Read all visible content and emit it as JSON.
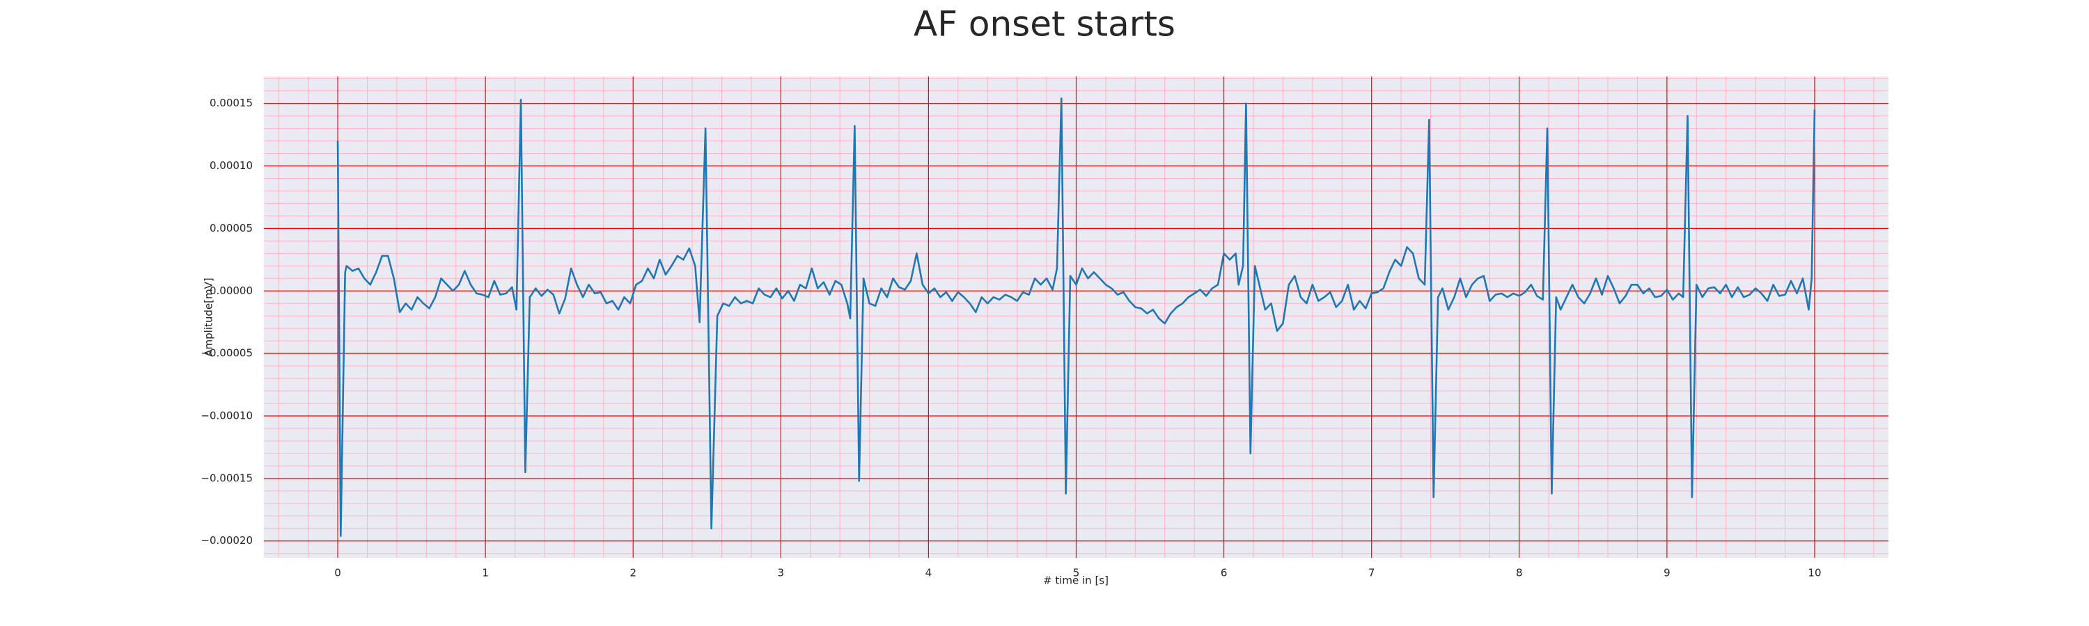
{
  "chart_data": {
    "type": "line",
    "title": "AF onset starts",
    "xlabel": "# time in [s]",
    "ylabel": "Amplitude[mV]",
    "color": "#1f77b4",
    "grid": true,
    "grid_color": "#ff0000",
    "minor_grid_color": "#ffb3c6",
    "minor_divisions": 5,
    "background": "#eaeaf2",
    "xlim": [
      -0.5,
      10.5
    ],
    "xticks": [
      0,
      1,
      2,
      3,
      4,
      5,
      6,
      7,
      8,
      9,
      10
    ],
    "ylim": [
      -0.0002135,
      0.0001715
    ],
    "yticks": [
      0.00015,
      {
        "value": 0.0001,
        "label": "0.00010"
      },
      5e-05,
      {
        "value": 0,
        "label": "0.00000"
      },
      {
        "value": -5e-05,
        "label": "−0.00005"
      },
      {
        "value": -0.0001,
        "label": "−0.00010"
      },
      {
        "value": -0.00015,
        "label": "−0.00015"
      },
      {
        "value": -0.0002,
        "label": "−0.00020"
      }
    ],
    "x": [
      0,
      0.02,
      0.05,
      0.06,
      0.1,
      0.14,
      0.18,
      0.22,
      0.26,
      0.3,
      0.34,
      0.38,
      0.42,
      0.46,
      0.5,
      0.54,
      0.58,
      0.62,
      0.66,
      0.7,
      0.74,
      0.78,
      0.82,
      0.86,
      0.9,
      0.94,
      0.98,
      1.02,
      1.06,
      1.1,
      1.14,
      1.18,
      1.21,
      1.24,
      1.27,
      1.3,
      1.34,
      1.38,
      1.42,
      1.46,
      1.5,
      1.54,
      1.58,
      1.62,
      1.66,
      1.7,
      1.74,
      1.78,
      1.82,
      1.86,
      1.9,
      1.94,
      1.98,
      2.02,
      2.06,
      2.1,
      2.14,
      2.18,
      2.22,
      2.26,
      2.3,
      2.34,
      2.38,
      2.42,
      2.45,
      2.49,
      2.53,
      2.57,
      2.61,
      2.65,
      2.69,
      2.73,
      2.77,
      2.81,
      2.85,
      2.89,
      2.93,
      2.97,
      3.01,
      3.05,
      3.09,
      3.13,
      3.17,
      3.21,
      3.25,
      3.29,
      3.33,
      3.37,
      3.41,
      3.45,
      3.47,
      3.5,
      3.53,
      3.56,
      3.6,
      3.64,
      3.68,
      3.72,
      3.76,
      3.8,
      3.84,
      3.88,
      3.92,
      3.96,
      4,
      4.04,
      4.08,
      4.12,
      4.16,
      4.2,
      4.24,
      4.28,
      4.32,
      4.36,
      4.4,
      4.44,
      4.48,
      4.52,
      4.56,
      4.6,
      4.64,
      4.68,
      4.72,
      4.76,
      4.8,
      4.84,
      4.87,
      4.9,
      4.93,
      4.96,
      5,
      5.04,
      5.08,
      5.12,
      5.16,
      5.2,
      5.24,
      5.28,
      5.32,
      5.36,
      5.4,
      5.44,
      5.48,
      5.52,
      5.56,
      5.6,
      5.64,
      5.68,
      5.72,
      5.76,
      5.8,
      5.84,
      5.88,
      5.92,
      5.96,
      6,
      6.04,
      6.08,
      6.1,
      6.13,
      6.15,
      6.18,
      6.21,
      6.24,
      6.28,
      6.32,
      6.36,
      6.4,
      6.44,
      6.48,
      6.52,
      6.56,
      6.6,
      6.64,
      6.68,
      6.72,
      6.76,
      6.8,
      6.84,
      6.88,
      6.92,
      6.96,
      7,
      7.04,
      7.08,
      7.12,
      7.16,
      7.2,
      7.24,
      7.28,
      7.32,
      7.36,
      7.39,
      7.42,
      7.45,
      7.48,
      7.52,
      7.56,
      7.6,
      7.64,
      7.68,
      7.72,
      7.76,
      7.8,
      7.84,
      7.88,
      7.92,
      7.96,
      8,
      8.04,
      8.08,
      8.12,
      8.16,
      8.19,
      8.22,
      8.25,
      8.28,
      8.32,
      8.36,
      8.4,
      8.44,
      8.48,
      8.52,
      8.56,
      8.6,
      8.64,
      8.68,
      8.72,
      8.76,
      8.8,
      8.84,
      8.88,
      8.92,
      8.96,
      9,
      9.04,
      9.08,
      9.11,
      9.14,
      9.17,
      9.2,
      9.24,
      9.28,
      9.32,
      9.36,
      9.4,
      9.44,
      9.48,
      9.52,
      9.56,
      9.6,
      9.64,
      9.68,
      9.72,
      9.76,
      9.8,
      9.84,
      9.88,
      9.92,
      9.96,
      9.98,
      10
    ],
    "values": [
      0.00012,
      -0.000196,
      1.5e-05,
      2e-05,
      1.6e-05,
      1.8e-05,
      1e-05,
      5e-06,
      1.5e-05,
      2.8e-05,
      2.8e-05,
      1e-05,
      -1.7e-05,
      -1e-05,
      -1.5e-05,
      -5e-06,
      -1e-05,
      -1.4e-05,
      -5e-06,
      1e-05,
      5e-06,
      0,
      5e-06,
      1.6e-05,
      5e-06,
      -2e-06,
      -3e-06,
      -5e-06,
      8e-06,
      -3e-06,
      -2e-06,
      3e-06,
      -1.5e-05,
      0.000153,
      -0.000145,
      -5e-06,
      2e-06,
      -4e-06,
      1e-06,
      -3e-06,
      -1.8e-05,
      -6e-06,
      1.8e-05,
      5e-06,
      -5e-06,
      5e-06,
      -2e-06,
      -1e-06,
      -1e-05,
      -8e-06,
      -1.5e-05,
      -5e-06,
      -1e-05,
      5e-06,
      8e-06,
      1.8e-05,
      1e-05,
      2.5e-05,
      1.3e-05,
      2e-05,
      2.8e-05,
      2.5e-05,
      3.4e-05,
      2e-05,
      -2.5e-05,
      0.00013,
      -0.00019,
      -2e-05,
      -1e-05,
      -1.2e-05,
      -5e-06,
      -1e-05,
      -8e-06,
      -1e-05,
      2e-06,
      -3e-06,
      -5e-06,
      2e-06,
      -6e-06,
      0,
      -8e-06,
      5e-06,
      2e-06,
      1.8e-05,
      2e-06,
      7e-06,
      -3e-06,
      8e-06,
      5e-06,
      -1e-05,
      -2.2e-05,
      0.000132,
      -0.000152,
      1e-05,
      -1e-05,
      -1.2e-05,
      2e-06,
      -5e-06,
      1e-05,
      3e-06,
      1e-06,
      8e-06,
      3e-05,
      5e-06,
      -2e-06,
      2e-06,
      -5e-06,
      -1e-06,
      -8e-06,
      -1e-06,
      -5e-06,
      -1e-05,
      -1.7e-05,
      -5e-06,
      -1e-05,
      -5e-06,
      -7e-06,
      -3e-06,
      -5e-06,
      -8e-06,
      -1e-06,
      -3e-06,
      1e-05,
      5e-06,
      1e-05,
      1e-06,
      1.8e-05,
      0.000154,
      -0.000162,
      1.2e-05,
      5e-06,
      1.8e-05,
      1e-05,
      1.5e-05,
      1e-05,
      5e-06,
      2e-06,
      -3e-06,
      -1e-06,
      -8e-06,
      -1.3e-05,
      -1.4e-05,
      -1.8e-05,
      -1.5e-05,
      -2.2e-05,
      -2.6e-05,
      -1.8e-05,
      -1.3e-05,
      -1e-05,
      -5e-06,
      -2e-06,
      1e-06,
      -4e-06,
      2e-06,
      5e-06,
      3e-05,
      2.5e-05,
      3e-05,
      5e-06,
      2e-05,
      0.00015,
      -0.00013,
      2e-05,
      5e-06,
      -1.5e-05,
      -1e-05,
      -3.2e-05,
      -2.6e-05,
      5e-06,
      1.2e-05,
      -5e-06,
      -1e-05,
      5e-06,
      -8e-06,
      -5e-06,
      -1e-06,
      -1.3e-05,
      -8e-06,
      5e-06,
      -1.5e-05,
      -8e-06,
      -1.4e-05,
      -2e-06,
      -1e-06,
      2e-06,
      1.5e-05,
      2.5e-05,
      2e-05,
      3.5e-05,
      3e-05,
      1e-05,
      5e-06,
      0.000137,
      -0.000165,
      -5e-06,
      2e-06,
      -1.5e-05,
      -5e-06,
      1e-05,
      -5e-06,
      5e-06,
      1e-05,
      1.2e-05,
      -8e-06,
      -3e-06,
      -2e-06,
      -5e-06,
      -2e-06,
      -4e-06,
      -1e-06,
      5e-06,
      -4e-06,
      -7e-06,
      0.00013,
      -0.000162,
      -5e-06,
      -1.5e-05,
      -5e-06,
      5e-06,
      -5e-06,
      -1e-05,
      -2e-06,
      1e-05,
      -3e-06,
      1.2e-05,
      2e-06,
      -1e-05,
      -4e-06,
      5e-06,
      5e-06,
      -2e-06,
      2e-06,
      -5e-06,
      -4e-06,
      1e-06,
      -7e-06,
      -2e-06,
      -5e-06,
      0.00014,
      -0.000165,
      5e-06,
      -5e-06,
      2e-06,
      3e-06,
      -2e-06,
      5e-06,
      -5e-06,
      3e-06,
      -5e-06,
      -3e-06,
      2e-06,
      -2e-06,
      -8e-06,
      5e-06,
      -4e-06,
      -3e-06,
      8e-06,
      -2e-06,
      1e-05,
      -1.5e-05,
      1e-05,
      0.000145
    ]
  }
}
